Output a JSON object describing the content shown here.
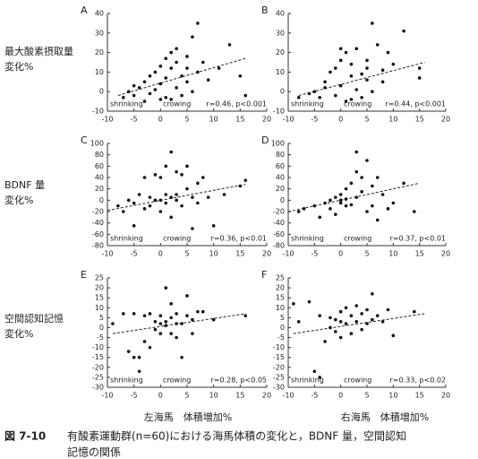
{
  "row_labels": [
    [
      "最大酸素摂取量",
      "変化%"
    ],
    [
      "BDNF 量",
      "変化%"
    ],
    [
      "空間認知記憶",
      "変化%"
    ]
  ],
  "x_axis_labels": [
    "左海馬　体積増加%",
    "右海馬　体積増加%"
  ],
  "caption_label": "図 7-10",
  "caption": [
    "有酸素運動群(n=60)における海馬体積の変化と，BDNF 量，空間認知",
    "記憶の関係"
  ],
  "chart_data": [
    {
      "type": "scatter",
      "label": "A",
      "annotations": [
        "shrinking",
        "crowing",
        "r=0.46, p<0.001"
      ],
      "color": "#111",
      "x": [
        -7,
        -6,
        -5,
        -5,
        -4,
        -3,
        -3,
        -2,
        -2,
        -1,
        -1,
        0,
        0,
        0,
        1,
        1,
        1,
        2,
        2,
        2,
        3,
        3,
        3,
        4,
        4,
        5,
        5,
        5,
        6,
        6,
        7,
        7,
        8,
        9,
        11,
        13,
        15,
        16
      ],
      "y": [
        -3,
        0,
        3,
        -2,
        2,
        -5,
        5,
        8,
        -1,
        10,
        1,
        13,
        -4,
        4,
        17,
        7,
        -3,
        20,
        12,
        -4,
        15,
        2,
        22,
        8,
        -2,
        18,
        5,
        12,
        28,
        0,
        10,
        35,
        15,
        6,
        12,
        24,
        8,
        -2
      ],
      "trend_x": [
        -8,
        16
      ],
      "trend_y": [
        -2,
        17
      ],
      "xlim": [
        -10,
        20
      ],
      "xticks": [
        -10,
        -5,
        0,
        5,
        10,
        15,
        20
      ],
      "ylim": [
        -10,
        40
      ],
      "yticks": [
        -10,
        0,
        10,
        20,
        30,
        40
      ]
    },
    {
      "type": "scatter",
      "label": "B",
      "annotations": [
        "shrinking",
        "crowing",
        "r=0.44, p<0.001"
      ],
      "color": "#111",
      "x": [
        -8,
        -6,
        -5,
        -4,
        -3,
        -3,
        -2,
        -1,
        -1,
        0,
        0,
        0,
        1,
        1,
        2,
        2,
        2,
        3,
        3,
        4,
        4,
        5,
        5,
        5,
        6,
        6,
        7,
        8,
        8,
        9,
        10,
        12,
        15,
        15
      ],
      "y": [
        -3,
        -1,
        0,
        -3,
        5,
        2,
        10,
        -2,
        12,
        22,
        3,
        16,
        -5,
        20,
        8,
        -4,
        14,
        1,
        22,
        9,
        -3,
        16,
        6,
        12,
        35,
        0,
        24,
        11,
        5,
        20,
        14,
        31,
        7,
        12
      ],
      "trend_x": [
        -8,
        16
      ],
      "trend_y": [
        -2,
        15
      ],
      "xlim": [
        -10,
        20
      ],
      "xticks": [
        -10,
        -5,
        0,
        5,
        10,
        15,
        20
      ],
      "ylim": [
        -10,
        40
      ],
      "yticks": [
        -10,
        0,
        10,
        20,
        30,
        40
      ]
    },
    {
      "type": "scatter",
      "label": "C",
      "annotations": [
        "shrinking",
        "crowing",
        "r=0.36, p<0.01"
      ],
      "color": "#111",
      "x": [
        -8,
        -7,
        -6,
        -5,
        -5,
        -4,
        -3,
        -3,
        -2,
        -2,
        -1,
        -1,
        0,
        0,
        0,
        1,
        1,
        1,
        2,
        2,
        2,
        3,
        3,
        3,
        4,
        4,
        5,
        5,
        6,
        6,
        7,
        7,
        8,
        9,
        10,
        12,
        15,
        16
      ],
      "y": [
        -10,
        -20,
        0,
        -5,
        -45,
        10,
        -15,
        40,
        5,
        -10,
        45,
        0,
        0,
        40,
        -20,
        10,
        60,
        -5,
        85,
        5,
        -30,
        0,
        50,
        10,
        45,
        -10,
        20,
        60,
        5,
        -50,
        30,
        -5,
        40,
        5,
        -45,
        10,
        25,
        35
      ],
      "trend_x": [
        -10,
        16
      ],
      "trend_y": [
        -18,
        28
      ],
      "xlim": [
        -10,
        20
      ],
      "xticks": [
        -10,
        -5,
        0,
        5,
        10,
        15,
        20
      ],
      "ylim": [
        -80,
        100
      ],
      "yticks": [
        -80,
        -60,
        -40,
        -20,
        0,
        20,
        40,
        60,
        80,
        100
      ]
    },
    {
      "type": "scatter",
      "label": "D",
      "annotations": [
        "shrinking",
        "crowing",
        "r=0.37, p<0.01"
      ],
      "color": "#111",
      "x": [
        -8,
        -7,
        -5,
        -4,
        -3,
        -2,
        -2,
        -1,
        -1,
        0,
        0,
        0,
        1,
        1,
        1,
        2,
        2,
        3,
        3,
        3,
        4,
        4,
        5,
        5,
        6,
        6,
        7,
        7,
        8,
        9,
        10,
        12,
        14
      ],
      "y": [
        -20,
        -15,
        -10,
        -30,
        -5,
        -15,
        0,
        -25,
        5,
        0,
        10,
        -5,
        20,
        -10,
        2,
        30,
        -8,
        50,
        5,
        85,
        40,
        15,
        -20,
        70,
        25,
        -10,
        40,
        -35,
        10,
        -15,
        -5,
        30,
        -20
      ],
      "trend_x": [
        -10,
        15
      ],
      "trend_y": [
        -20,
        30
      ],
      "xlim": [
        -10,
        20
      ],
      "xticks": [
        -10,
        -5,
        0,
        5,
        10,
        15,
        20
      ],
      "ylim": [
        -80,
        100
      ],
      "yticks": [
        -80,
        -60,
        -40,
        -20,
        0,
        20,
        40,
        60,
        80,
        100
      ]
    },
    {
      "type": "scatter",
      "label": "E",
      "annotations": [
        "shrinking",
        "crowing",
        "r=0.28, p<0.05"
      ],
      "color": "#111",
      "x": [
        -9,
        -7,
        -6,
        -5,
        -5,
        -4,
        -4,
        -3,
        -3,
        -2,
        -2,
        -1,
        -1,
        0,
        0,
        0,
        1,
        1,
        1,
        2,
        2,
        2,
        3,
        3,
        3,
        4,
        4,
        5,
        5,
        6,
        6,
        7,
        8,
        10,
        16
      ],
      "y": [
        2,
        7,
        -12,
        7,
        -15,
        -15,
        -22,
        6,
        -7,
        7,
        -10,
        3,
        -1,
        2,
        6,
        -3,
        20,
        3,
        1,
        5,
        -3,
        12,
        -5,
        2,
        7,
        -15,
        2,
        6,
        16,
        4,
        -3,
        8,
        8,
        4,
        6
      ],
      "trend_x": [
        -9,
        16
      ],
      "trend_y": [
        -3,
        7
      ],
      "xlim": [
        -10,
        20
      ],
      "xticks": [
        -10,
        -5,
        0,
        5,
        10,
        15,
        20
      ],
      "ylim": [
        -30,
        25
      ],
      "yticks": [
        -30,
        -25,
        -20,
        -15,
        -10,
        -5,
        0,
        5,
        10,
        15,
        20,
        25
      ]
    },
    {
      "type": "scatter",
      "label": "F",
      "annotations": [
        "shrinking",
        "crowing",
        "r=0.33, p<0.02"
      ],
      "color": "#111",
      "x": [
        -9,
        -8,
        -6,
        -5,
        -4,
        -4,
        -3,
        -2,
        -2,
        -1,
        -1,
        0,
        0,
        0,
        1,
        1,
        2,
        2,
        3,
        3,
        4,
        4,
        5,
        5,
        6,
        6,
        7,
        8,
        9,
        10,
        14
      ],
      "y": [
        12,
        3,
        13,
        -22,
        6,
        -25,
        -7,
        0,
        5,
        -2,
        4,
        3,
        -5,
        8,
        2,
        10,
        -3,
        6,
        3,
        11,
        7,
        -1,
        9,
        2,
        4,
        17,
        6,
        3,
        9,
        -4,
        8
      ],
      "trend_x": [
        -9,
        16
      ],
      "trend_y": [
        -3,
        7
      ],
      "xlim": [
        -10,
        20
      ],
      "xticks": [
        -10,
        -5,
        0,
        5,
        10,
        15,
        20
      ],
      "ylim": [
        -30,
        25
      ],
      "yticks": [
        -30,
        -25,
        -20,
        -15,
        -10,
        -5,
        0,
        5,
        10,
        15,
        20,
        25
      ]
    }
  ]
}
